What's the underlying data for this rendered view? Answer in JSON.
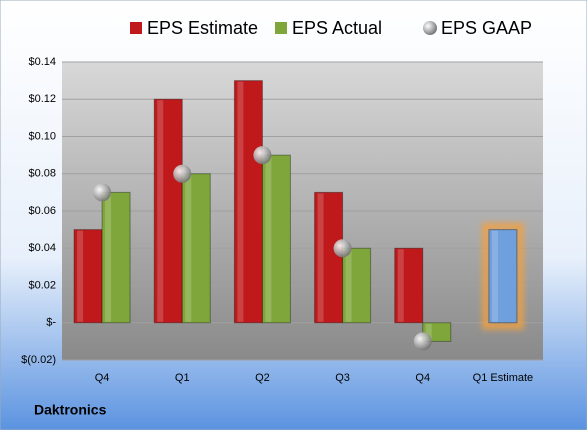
{
  "chart_data": {
    "type": "bar",
    "categories": [
      "Q4",
      "Q1",
      "Q2",
      "Q3",
      "Q4",
      "Q1 Estimate"
    ],
    "series": [
      {
        "name": "EPS Estimate",
        "color": "#c0191c",
        "values": [
          0.05,
          0.12,
          0.13,
          0.07,
          0.04,
          0.05
        ],
        "colors": [
          "#c0191c",
          "#c0191c",
          "#c0191c",
          "#c0191c",
          "#c0191c",
          "#6f9fdc"
        ],
        "glow": [
          false,
          false,
          false,
          false,
          false,
          true
        ],
        "glow_color": "#f2a040"
      },
      {
        "name": "EPS Actual",
        "color": "#7fa63a",
        "values": [
          0.07,
          0.08,
          0.09,
          0.04,
          -0.01,
          null
        ]
      },
      {
        "name": "EPS GAAP",
        "color": "#a8a8a8",
        "marker": "sphere",
        "values": [
          0.07,
          0.08,
          0.09,
          0.04,
          -0.01,
          null
        ]
      }
    ],
    "ylim": [
      -0.02,
      0.14
    ],
    "yticks": [
      {
        "value": -0.02,
        "label": "$(0.02)"
      },
      {
        "value": 0,
        "label": "$-"
      },
      {
        "value": 0.02,
        "label": "$0.02"
      },
      {
        "value": 0.04,
        "label": "$0.04"
      },
      {
        "value": 0.06,
        "label": "$0.06"
      },
      {
        "value": 0.08,
        "label": "$0.08"
      },
      {
        "value": 0.1,
        "label": "$0.10"
      },
      {
        "value": 0.12,
        "label": "$0.12"
      },
      {
        "value": 0.14,
        "label": "$0.14"
      }
    ],
    "grid": true,
    "footer": "Daktronics"
  }
}
